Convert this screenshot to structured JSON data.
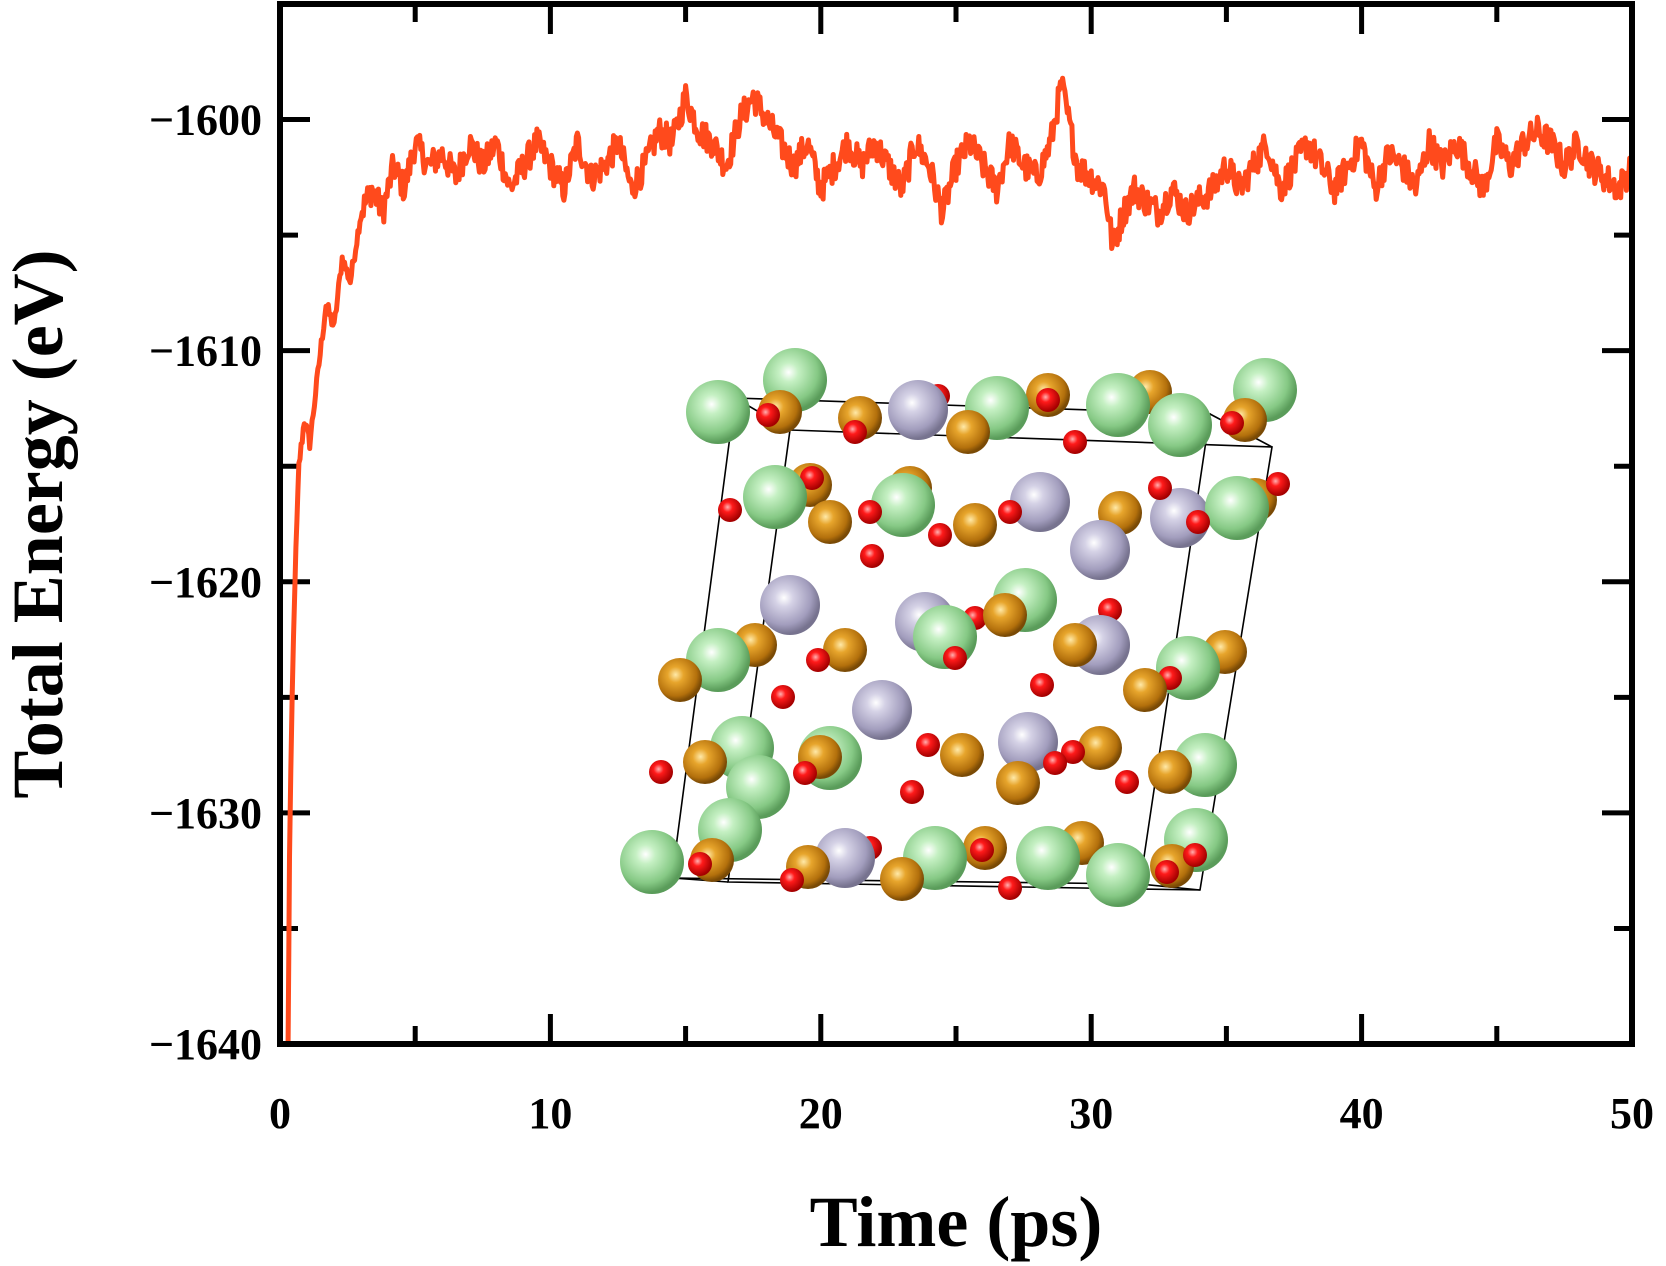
{
  "chart_data": {
    "type": "line",
    "title": "",
    "xlabel": "Time (ps)",
    "ylabel": "Total Energy (eV)",
    "xlim": [
      0,
      50
    ],
    "ylim": [
      -1640,
      -1595
    ],
    "xticks": [
      0,
      10,
      20,
      30,
      40,
      50
    ],
    "xtick_labels": [
      "0",
      "10",
      "20",
      "30",
      "40",
      "50"
    ],
    "yticks": [
      -1640,
      -1630,
      -1620,
      -1610,
      -1600
    ],
    "ytick_labels": [
      "−1640",
      "−1630",
      "−1620",
      "−1610",
      "−1600"
    ],
    "grid": false,
    "legend": "none",
    "line_color": "#ff4a1c",
    "series": [
      {
        "name": "Total Energy",
        "x": [
          0.3,
          0.35,
          0.45,
          0.55,
          0.7,
          0.9,
          1.1,
          1.4,
          1.7,
          2.0,
          2.3,
          2.6,
          3.0,
          3.4,
          3.8,
          4.2,
          4.6,
          5.0,
          5.5,
          6.0,
          6.5,
          7.0,
          7.5,
          8.0,
          8.5,
          9.0,
          9.5,
          10.0,
          10.5,
          11.0,
          11.5,
          12.0,
          12.5,
          13.0,
          13.5,
          14.0,
          14.5,
          15.0,
          15.5,
          16.0,
          16.5,
          17.0,
          17.5,
          18.0,
          18.5,
          19.0,
          19.5,
          20.0,
          20.5,
          21.0,
          21.5,
          22.0,
          22.5,
          23.0,
          23.5,
          24.0,
          24.5,
          25.0,
          25.5,
          26.0,
          26.5,
          27.0,
          27.5,
          28.0,
          28.5,
          28.9,
          29.5,
          30.0,
          30.5,
          30.8,
          31.2,
          31.6,
          32.0,
          32.5,
          33.0,
          33.5,
          34.0,
          34.5,
          35.0,
          35.5,
          36.0,
          36.5,
          37.0,
          37.5,
          38.0,
          38.5,
          39.0,
          39.5,
          40.0,
          40.5,
          41.0,
          41.5,
          42.0,
          42.5,
          43.0,
          43.5,
          44.0,
          44.5,
          45.0,
          45.5,
          46.0,
          46.5,
          47.0,
          47.5,
          48.0,
          48.5,
          49.0,
          49.5,
          50.0
        ],
        "values": [
          -1640,
          -1632,
          -1625,
          -1620,
          -1615,
          -1613,
          -1614,
          -1611,
          -1608,
          -1609,
          -1606,
          -1607,
          -1604,
          -1603,
          -1604,
          -1602,
          -1603,
          -1601,
          -1602,
          -1601.5,
          -1602.5,
          -1601,
          -1602,
          -1601,
          -1603,
          -1602,
          -1601,
          -1602,
          -1603,
          -1601,
          -1602.5,
          -1602,
          -1601,
          -1603,
          -1602,
          -1600.5,
          -1601,
          -1599,
          -1600.5,
          -1601,
          -1602,
          -1600,
          -1599,
          -1600,
          -1601,
          -1602,
          -1601,
          -1603,
          -1602,
          -1601,
          -1602,
          -1601,
          -1602,
          -1603,
          -1601,
          -1602,
          -1604,
          -1602,
          -1601,
          -1602,
          -1603,
          -1601,
          -1602,
          -1602.5,
          -1601,
          -1598.5,
          -1602,
          -1602.5,
          -1603,
          -1605.5,
          -1604,
          -1603,
          -1603.5,
          -1604,
          -1603,
          -1604,
          -1603.5,
          -1603,
          -1602,
          -1603,
          -1602,
          -1601,
          -1603,
          -1602,
          -1601,
          -1602,
          -1603,
          -1602,
          -1601,
          -1603,
          -1601.5,
          -1602,
          -1603,
          -1601,
          -1602,
          -1601,
          -1602,
          -1603,
          -1601,
          -1602,
          -1601,
          -1600.5,
          -1601,
          -1602,
          -1601,
          -1602,
          -1602.5,
          -1603,
          -1602
        ]
      }
    ]
  },
  "inset": {
    "description_icon": "crystal-structure-image",
    "colors": {
      "green_atom": "#8fd18f",
      "gray_atom": "#a9a4c4",
      "gold_atom": "#c9820f",
      "red_atom": "#e0101a",
      "cell_edge": "#000000"
    }
  }
}
